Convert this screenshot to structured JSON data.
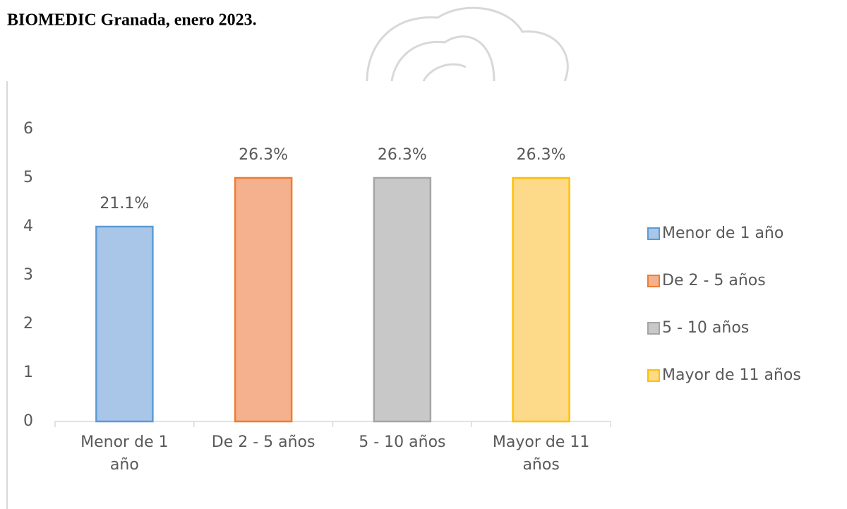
{
  "header": {
    "title": "BIOMEDIC Granada, enero 2023."
  },
  "chart_data": {
    "type": "bar",
    "categories": [
      "Menor de 1 año",
      "De 2 - 5 años",
      "5 - 10 años",
      "Mayor de 11 años"
    ],
    "values": [
      4,
      5,
      5,
      5
    ],
    "value_labels": [
      "21.1%",
      "26.3%",
      "26.3%",
      "26.3%"
    ],
    "colors": [
      "#a9c6e8",
      "#f5b08e",
      "#c8c8c8",
      "#fdd98a"
    ],
    "edgecolors": [
      "#5b9bd5",
      "#ed7d31",
      "#a5a5a5",
      "#ffc000"
    ],
    "ylim": [
      0,
      6
    ],
    "yticks": [
      0,
      1,
      2,
      3,
      4,
      5,
      6
    ],
    "grid": false,
    "legend": "right"
  }
}
